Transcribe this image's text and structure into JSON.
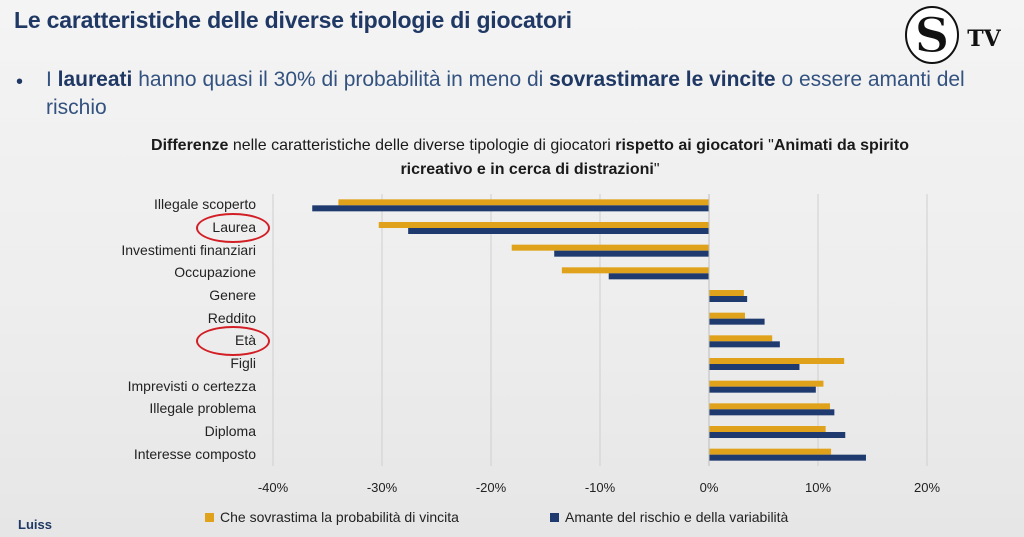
{
  "slide": {
    "title": "Le caratteristiche delle diverse tipologie di giocatori",
    "bullet": {
      "p1": "I ",
      "b1": "laureati",
      "p2": " hanno quasi il 30% di probabilità in meno di ",
      "b2": "sovrastimare le vincite",
      "p3": " o essere amanti del rischio"
    },
    "logo_text": "S",
    "logo_suffix": "TV",
    "footer": "Luiss"
  },
  "chart_title": {
    "b1": "Differenze",
    "p1": " nelle caratteristiche delle diverse tipologie di giocatori ",
    "b2": "rispetto ai giocatori",
    "p2": " \"",
    "b3": "Animati da spirito ricreativo e in cerca di distrazioni",
    "p3": "\""
  },
  "colors": {
    "series1": "#e0a21a",
    "series2": "#1f3a6e",
    "highlight": "#d21f26"
  },
  "chart_data": {
    "type": "bar",
    "orientation": "horizontal",
    "categories": [
      "Illegale scoperto",
      "Laurea",
      "Investimenti finanziari",
      "Occupazione",
      "Genere",
      "Reddito",
      "Età",
      "Figli",
      "Imprevisti o certezza",
      "Illegale problema",
      "Diploma",
      "Interesse composto"
    ],
    "series": [
      {
        "name": "Che sovrastima la probabilità di vincita",
        "values": [
          -34,
          -30.3,
          -18.1,
          -13.5,
          3.2,
          3.3,
          5.8,
          12.4,
          10.5,
          11.1,
          10.7,
          11.2
        ]
      },
      {
        "name": "Amante del rischio e della variabilità",
        "values": [
          -36.4,
          -27.6,
          -14.2,
          -9.2,
          3.5,
          5.1,
          6.5,
          8.3,
          9.8,
          11.5,
          12.5,
          14.4
        ]
      }
    ],
    "xlim": [
      -40,
      20
    ],
    "ticks": [
      -40,
      -30,
      -20,
      -10,
      0,
      10,
      20
    ],
    "tick_labels": [
      "-40%",
      "-30%",
      "-20%",
      "-10%",
      "0%",
      "10%",
      "20%"
    ],
    "grid": true,
    "legend_position": "bottom",
    "highlighted_categories": [
      "Laurea",
      "Età"
    ]
  }
}
